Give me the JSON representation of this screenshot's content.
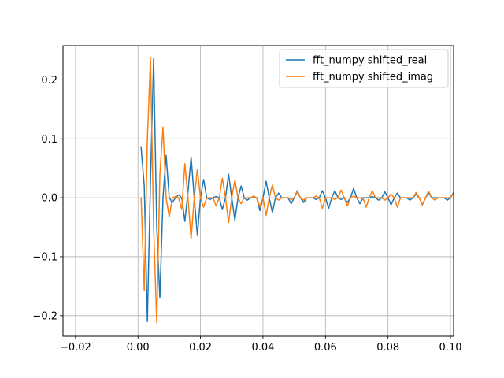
{
  "chart_data": {
    "type": "line",
    "title": "",
    "xlabel": "",
    "ylabel": "",
    "xlim": [
      -0.024,
      0.101
    ],
    "ylim": [
      -0.235,
      0.258
    ],
    "grid": true,
    "legend_position": "top-right",
    "x_ticks": [
      {
        "value": -0.02,
        "label": "−0.02"
      },
      {
        "value": 0.0,
        "label": "0.00"
      },
      {
        "value": 0.02,
        "label": "0.02"
      },
      {
        "value": 0.04,
        "label": "0.04"
      },
      {
        "value": 0.06,
        "label": "0.06"
      },
      {
        "value": 0.08,
        "label": "0.08"
      },
      {
        "value": 0.1,
        "label": "0.10"
      }
    ],
    "y_ticks": [
      {
        "value": -0.2,
        "label": "−0.2"
      },
      {
        "value": -0.1,
        "label": "−0.1"
      },
      {
        "value": 0.0,
        "label": "0.0"
      },
      {
        "value": 0.1,
        "label": "0.1"
      },
      {
        "value": 0.2,
        "label": "0.2"
      }
    ],
    "series": [
      {
        "name": "fft_numpy shifted_real",
        "color": "#1f77b4",
        "x": [
          0.001,
          0.002,
          0.003,
          0.004,
          0.005,
          0.006,
          0.007,
          0.008,
          0.009,
          0.01,
          0.011,
          0.012,
          0.013,
          0.014,
          0.015,
          0.016,
          0.017,
          0.018,
          0.019,
          0.02,
          0.021,
          0.022,
          0.023,
          0.024,
          0.025,
          0.026,
          0.027,
          0.028,
          0.029,
          0.03,
          0.031,
          0.032,
          0.033,
          0.034,
          0.035,
          0.036,
          0.037,
          0.038,
          0.039,
          0.04,
          0.041,
          0.042,
          0.043,
          0.044,
          0.045,
          0.046,
          0.047,
          0.048,
          0.049,
          0.05,
          0.051,
          0.052,
          0.053,
          0.054,
          0.055,
          0.056,
          0.057,
          0.058,
          0.059,
          0.06,
          0.061,
          0.062,
          0.063,
          0.064,
          0.065,
          0.066,
          0.067,
          0.068,
          0.069,
          0.07,
          0.071,
          0.072,
          0.073,
          0.074,
          0.075,
          0.076,
          0.077,
          0.078,
          0.079,
          0.08,
          0.081,
          0.082,
          0.083,
          0.084,
          0.085,
          0.086,
          0.087,
          0.088,
          0.089,
          0.09,
          0.091,
          0.092,
          0.093,
          0.094,
          0.095,
          0.096,
          0.097,
          0.098,
          0.099,
          0.1,
          0.101
        ],
        "y": [
          0.085,
          0.02,
          -0.21,
          0.03,
          0.236,
          -0.05,
          -0.17,
          0.0,
          0.072,
          0.0,
          -0.008,
          0.0,
          0.005,
          0.0,
          -0.04,
          0.01,
          0.069,
          0.0,
          -0.064,
          0.0,
          0.031,
          0.0,
          -0.003,
          0.0,
          0.002,
          0.0,
          -0.02,
          0.0,
          0.04,
          0.0,
          -0.038,
          0.0,
          0.02,
          0.0,
          -0.004,
          0.0,
          0.0,
          0.0,
          -0.022,
          0.0,
          0.028,
          0.0,
          -0.025,
          0.0,
          0.008,
          0.0,
          0.0,
          0.0,
          -0.01,
          0.0,
          0.012,
          0.0,
          -0.008,
          0.0,
          0.0,
          0.0,
          -0.003,
          0.0,
          0.012,
          0.0,
          -0.018,
          0.0,
          0.012,
          0.0,
          -0.003,
          0.0,
          -0.008,
          0.0,
          0.016,
          0.0,
          -0.01,
          0.0,
          0.0,
          0.0,
          0.002,
          0.0,
          -0.004,
          0.0,
          0.01,
          0.0,
          -0.012,
          0.0,
          0.008,
          0.0,
          0.0,
          0.0,
          -0.004,
          0.0,
          0.006,
          0.0,
          -0.012,
          0.0,
          0.008,
          0.0,
          0.0,
          0.0,
          0.0,
          0.0,
          -0.004,
          0.0,
          0.009
        ]
      },
      {
        "name": "fft_numpy shifted_imag",
        "color": "#ff7f0e",
        "x": [
          0.001,
          0.002,
          0.003,
          0.004,
          0.005,
          0.006,
          0.007,
          0.008,
          0.009,
          0.01,
          0.011,
          0.012,
          0.013,
          0.014,
          0.015,
          0.016,
          0.017,
          0.018,
          0.019,
          0.02,
          0.021,
          0.022,
          0.023,
          0.024,
          0.025,
          0.026,
          0.027,
          0.028,
          0.029,
          0.03,
          0.031,
          0.032,
          0.033,
          0.034,
          0.035,
          0.036,
          0.037,
          0.038,
          0.039,
          0.04,
          0.041,
          0.042,
          0.043,
          0.044,
          0.045,
          0.046,
          0.047,
          0.048,
          0.049,
          0.05,
          0.051,
          0.052,
          0.053,
          0.054,
          0.055,
          0.056,
          0.057,
          0.058,
          0.059,
          0.06,
          0.061,
          0.062,
          0.063,
          0.064,
          0.065,
          0.066,
          0.067,
          0.068,
          0.069,
          0.07,
          0.071,
          0.072,
          0.073,
          0.074,
          0.075,
          0.076,
          0.077,
          0.078,
          0.079,
          0.08,
          0.081,
          0.082,
          0.083,
          0.084,
          0.085,
          0.086,
          0.087,
          0.088,
          0.089,
          0.09,
          0.091,
          0.092,
          0.093,
          0.094,
          0.095,
          0.096,
          0.097,
          0.098,
          0.099,
          0.1,
          0.101
        ],
        "y": [
          0.0,
          -0.158,
          0.1,
          0.237,
          -0.05,
          -0.212,
          0.04,
          0.12,
          0.0,
          -0.033,
          0.0,
          0.002,
          0.0,
          -0.02,
          0.058,
          0.0,
          -0.07,
          0.0,
          0.048,
          0.0,
          -0.016,
          0.0,
          0.0,
          0.0,
          -0.014,
          0.0,
          0.033,
          0.0,
          -0.042,
          0.0,
          0.03,
          0.0,
          -0.01,
          0.0,
          0.0,
          0.0,
          0.003,
          0.0,
          -0.015,
          0.0,
          -0.03,
          0.0,
          0.022,
          0.0,
          -0.004,
          0.0,
          0.0,
          0.0,
          -0.003,
          0.0,
          0.01,
          0.0,
          -0.004,
          0.0,
          0.0,
          0.0,
          0.003,
          0.0,
          -0.018,
          0.0,
          0.0,
          0.0,
          -0.003,
          0.0,
          0.013,
          0.0,
          -0.014,
          0.0,
          0.003,
          0.0,
          0.0,
          0.0,
          -0.016,
          0.0,
          0.012,
          0.0,
          0.0,
          0.0,
          -0.004,
          0.0,
          0.006,
          0.0,
          -0.016,
          0.0,
          0.0,
          0.0,
          0.0,
          0.0,
          0.009,
          0.0,
          -0.012,
          0.0,
          0.011,
          0.0,
          -0.004,
          0.0,
          0.0,
          0.0,
          0.0,
          0.0,
          0.008
        ]
      }
    ]
  }
}
